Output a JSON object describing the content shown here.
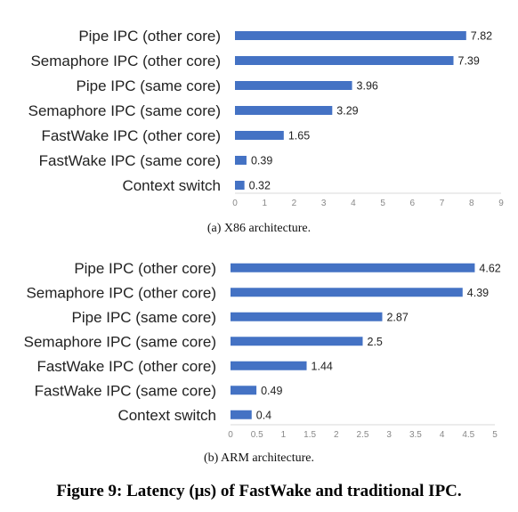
{
  "figure_caption": "Figure 9: Latency (μs) of FastWake and traditional IPC.",
  "colors": {
    "bar": "#4472C4",
    "axis": "#D9D9D9",
    "text": "#222222"
  },
  "chart_data": [
    {
      "type": "bar",
      "orientation": "horizontal",
      "subcaption": "(a)  X86 architecture.",
      "categories": [
        "Pipe IPC (other core)",
        "Semaphore IPC (other core)",
        "Pipe IPC (same core)",
        "Semaphore IPC (same core)",
        "FastWake IPC (other core)",
        "FastWake IPC (same core)",
        "Context switch"
      ],
      "values": [
        7.82,
        7.39,
        3.96,
        3.29,
        1.65,
        0.39,
        0.32
      ],
      "value_labels": [
        "7.82",
        "7.39",
        "3.96",
        "3.29",
        "1.65",
        "0.39",
        "0.32"
      ],
      "xlim": [
        0,
        9
      ],
      "ticks": [
        "0",
        "1",
        "2",
        "3",
        "4",
        "5",
        "6",
        "7",
        "8",
        "9"
      ],
      "grid": false
    },
    {
      "type": "bar",
      "orientation": "horizontal",
      "subcaption": "(b)  ARM architecture.",
      "categories": [
        "Pipe IPC (other core)",
        "Semaphore IPC (other core)",
        "Pipe IPC (same core)",
        "Semaphore IPC (same core)",
        "FastWake IPC (other core)",
        "FastWake IPC (same core)",
        "Context switch"
      ],
      "values": [
        4.62,
        4.39,
        2.87,
        2.5,
        1.44,
        0.49,
        0.4
      ],
      "value_labels": [
        "4.62",
        "4.39",
        "2.87",
        "2.5",
        "1.44",
        "0.49",
        "0.4"
      ],
      "xlim": [
        0,
        5
      ],
      "ticks": [
        "0",
        "0.5",
        "1",
        "1.5",
        "2",
        "2.5",
        "3",
        "3.5",
        "4",
        "4.5",
        "5"
      ],
      "grid": false
    }
  ]
}
